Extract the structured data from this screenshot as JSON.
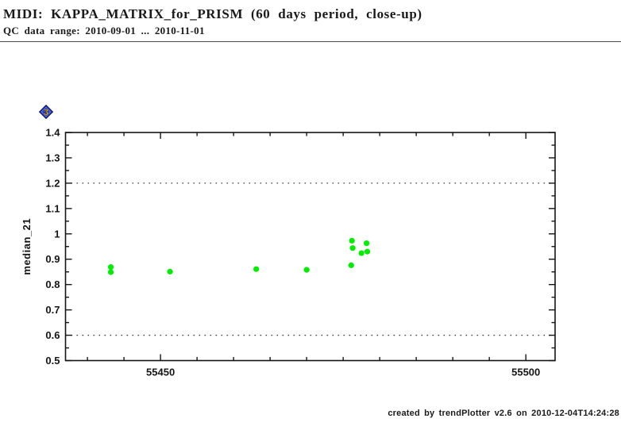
{
  "page": {
    "footer": "created by trendPlotter v2.6 on 2010-12-04T14:24:28",
    "nav_marker": {
      "icon": "blue-diamond-icon",
      "label": "3",
      "fill_color": "#2b3fd0",
      "border_color": "#0a1560",
      "text_color": "#ffd400"
    }
  },
  "chart_data": {
    "type": "scatter",
    "title": "MIDI: KAPPA_MATRIX_for_PRISM (60 days period, close-up)",
    "subtitle": "QC data range: 2010-09-01 ... 2010-11-01",
    "xlabel": "",
    "ylabel": "median_21",
    "xlim": [
      55437,
      55504
    ],
    "ylim": [
      0.5,
      1.4
    ],
    "x_major_ticks": [
      55450,
      55500
    ],
    "x_minor_step": 5,
    "y_major_step": 0.1,
    "y_minor_step": 0.05,
    "grid": false,
    "legend": "none",
    "hlines_dotted": [
      1.2,
      0.6
    ],
    "frame_color": "#151515",
    "dotted_line_color": "#3c3c3c",
    "marker": {
      "shape": "circle",
      "color": "#00ee00",
      "radius_px": 3.6
    },
    "points": [
      [
        55443.2,
        0.869
      ],
      [
        55443.2,
        0.849
      ],
      [
        55451.3,
        0.851
      ],
      [
        55463.1,
        0.861
      ],
      [
        55470.0,
        0.858
      ],
      [
        55476.1,
        0.876
      ],
      [
        55476.2,
        0.973
      ],
      [
        55476.3,
        0.944
      ],
      [
        55477.5,
        0.924
      ],
      [
        55478.2,
        0.963
      ],
      [
        55478.3,
        0.93
      ]
    ]
  }
}
